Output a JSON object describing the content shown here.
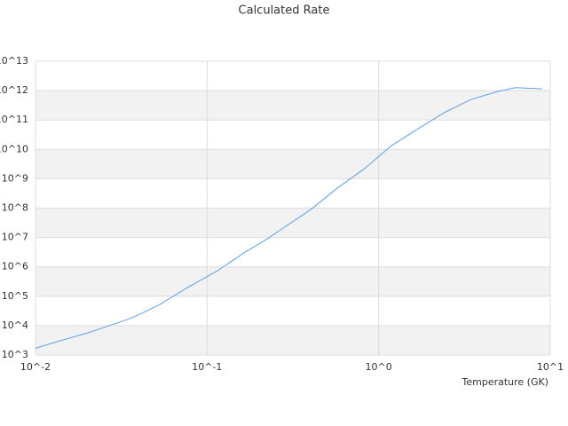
{
  "chart_data": {
    "type": "line",
    "title": "Calculated Rate",
    "x_label": "Temperature (GK)",
    "x": [
      0.01,
      0.0127,
      0.0204,
      0.026,
      0.037,
      0.053,
      0.076,
      0.115,
      0.164,
      0.221,
      0.281,
      0.402,
      0.574,
      0.826,
      1.18,
      1.69,
      2.42,
      3.45,
      4.94,
      6.27,
      8.95
    ],
    "series": [
      {
        "name": "Calculated Rate",
        "color": "#5aa0e6",
        "values": [
          1700,
          2600,
          5800,
          9300,
          19000,
          52000,
          190000,
          740000,
          3000000,
          8500000,
          22000000,
          89000000,
          480000000,
          2200000000,
          13000000000,
          50000000000,
          180000000000,
          500000000000,
          930000000000,
          1260000000000,
          1150000000000
        ]
      }
    ],
    "xlog": true,
    "ylog": true,
    "xlim": [
      0.01,
      10
    ],
    "xticks": [
      {
        "value": 0.01,
        "label": "10^-2"
      },
      {
        "value": 0.1,
        "label": "10^-1"
      },
      {
        "value": 1,
        "label": "10^0"
      },
      {
        "value": 10,
        "label": "10^1"
      }
    ],
    "ylim": [
      1000,
      10000000000000
    ],
    "yticks": [
      {
        "value": 1000,
        "label": "10^3"
      },
      {
        "value": 10000,
        "label": "10^4"
      },
      {
        "value": 100000,
        "label": "10^5"
      },
      {
        "value": 1000000,
        "label": "10^6"
      },
      {
        "value": 10000000,
        "label": "10^7"
      },
      {
        "value": 100000000,
        "label": "10^8"
      },
      {
        "value": 1000000000,
        "label": "10^9"
      },
      {
        "value": 10000000000,
        "label": "10^10"
      },
      {
        "value": 100000000000,
        "label": "10^11"
      },
      {
        "value": 1000000000000,
        "label": "10^12"
      },
      {
        "value": 10000000000000,
        "label": "10^13"
      }
    ],
    "grid": true,
    "band_color": "#f2f2f2"
  }
}
